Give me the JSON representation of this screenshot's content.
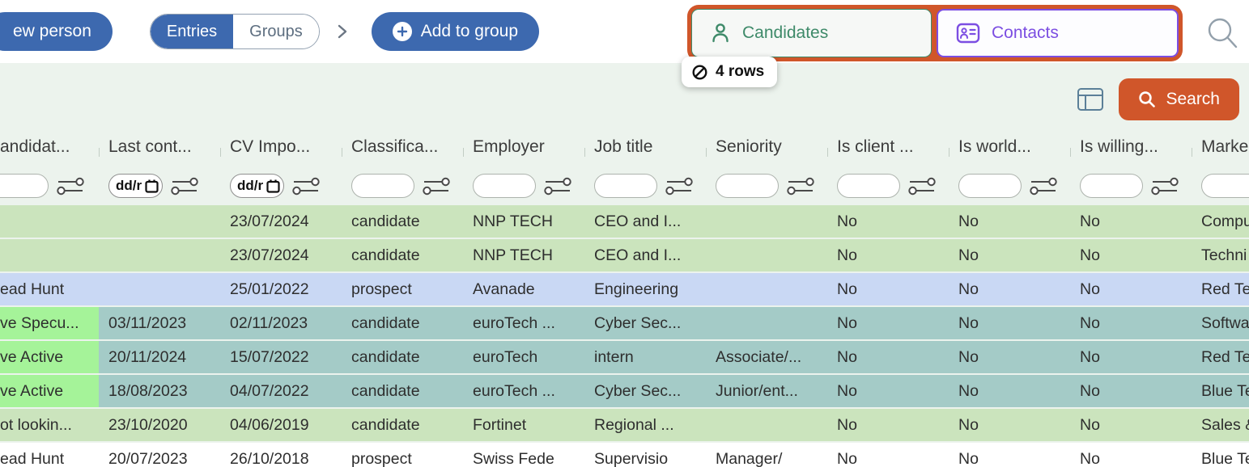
{
  "toolbar": {
    "new_person": "ew person",
    "entries": "Entries",
    "groups": "Groups",
    "add_to_group": "Add to group"
  },
  "tabs": {
    "candidates": "Candidates",
    "contacts": "Contacts"
  },
  "badge": {
    "text": "4 rows"
  },
  "search": {
    "button_label": "Search"
  },
  "colors": {
    "accent_blue": "#3d69af",
    "accent_orange": "#d0562a",
    "candidates_green": "#3e8a69",
    "contacts_purple": "#7c4ee2",
    "row_green": "#cbe4bd",
    "row_blue": "#c9d8f4",
    "row_teal": "#a4cbc7",
    "status_bright_green": "#a5f399",
    "area_mint": "#ecf3ed"
  },
  "table": {
    "columns": [
      {
        "label": "andidat...",
        "type": "text"
      },
      {
        "label": "Last cont...",
        "type": "date",
        "date_placeholder": "dd/r"
      },
      {
        "label": "CV Impo...",
        "type": "date",
        "date_placeholder": "dd/r"
      },
      {
        "label": "Classifica...",
        "type": "text"
      },
      {
        "label": "Employer",
        "type": "text"
      },
      {
        "label": "Job title",
        "type": "text"
      },
      {
        "label": "Seniority",
        "type": "text"
      },
      {
        "label": "Is client ...",
        "type": "text"
      },
      {
        "label": "Is world...",
        "type": "text"
      },
      {
        "label": "Is willing...",
        "type": "text"
      },
      {
        "label": "Marke",
        "type": "text"
      }
    ],
    "rows": [
      {
        "bg": "green",
        "first_cell_highlight": false,
        "cells": [
          "",
          "",
          "23/07/2024",
          "candidate",
          "NNP TECH",
          "CEO and I...",
          "",
          "No",
          "No",
          "No",
          "Compu"
        ]
      },
      {
        "bg": "green",
        "first_cell_highlight": false,
        "cells": [
          "",
          "",
          "23/07/2024",
          "candidate",
          "NNP TECH",
          "CEO and I...",
          "",
          "No",
          "No",
          "No",
          "Techni"
        ]
      },
      {
        "bg": "blue",
        "first_cell_highlight": false,
        "cells": [
          "ead Hunt",
          "",
          "25/01/2022",
          "prospect",
          "Avanade",
          "Engineering",
          "",
          "No",
          "No",
          "No",
          "Red Te"
        ]
      },
      {
        "bg": "teal",
        "first_cell_highlight": true,
        "cells": [
          "ve Specu...",
          "03/11/2023",
          "02/11/2023",
          "candidate",
          "euroTech ...",
          "Cyber Sec...",
          "",
          "No",
          "No",
          "No",
          "Softwa"
        ]
      },
      {
        "bg": "teal",
        "first_cell_highlight": true,
        "cells": [
          "ve Active",
          "20/11/2024",
          "15/07/2022",
          "candidate",
          "euroTech",
          "intern",
          "Associate/...",
          "No",
          "No",
          "No",
          "Red Te"
        ]
      },
      {
        "bg": "teal",
        "first_cell_highlight": true,
        "cells": [
          "ve Active",
          "18/08/2023",
          "04/07/2022",
          "candidate",
          "euroTech ...",
          "Cyber Sec...",
          "Junior/ent...",
          "No",
          "No",
          "No",
          "Blue Te"
        ]
      },
      {
        "bg": "green",
        "first_cell_highlight": false,
        "cells": [
          "ot lookin...",
          "23/10/2020",
          "04/06/2019",
          "candidate",
          "Fortinet",
          "Regional ...",
          "",
          "No",
          "No",
          "No",
          "Sales &"
        ]
      },
      {
        "bg": "white",
        "first_cell_highlight": false,
        "cells": [
          "ead Hunt",
          "20/07/2023",
          "26/10/2018",
          "prospect",
          "Swiss Fede",
          "Supervisio",
          "Manager/",
          "No",
          "No",
          "No",
          "Blue Te"
        ]
      }
    ]
  }
}
